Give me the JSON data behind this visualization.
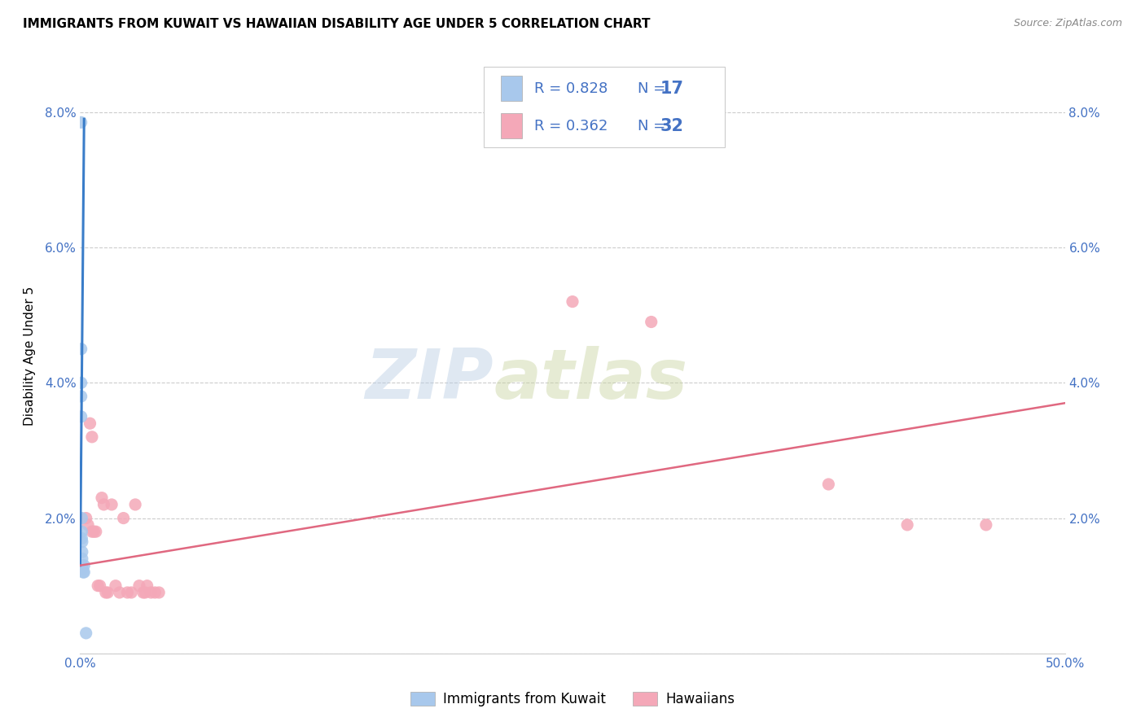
{
  "title": "IMMIGRANTS FROM KUWAIT VS HAWAIIAN DISABILITY AGE UNDER 5 CORRELATION CHART",
  "source": "Source: ZipAtlas.com",
  "ylabel": "Disability Age Under 5",
  "xlim": [
    0.0,
    0.5
  ],
  "ylim": [
    0.0,
    0.088
  ],
  "xticks": [
    0.0,
    0.1,
    0.2,
    0.3,
    0.4,
    0.5
  ],
  "yticks": [
    0.0,
    0.02,
    0.04,
    0.06,
    0.08
  ],
  "ytick_labels": [
    "",
    "2.0%",
    "4.0%",
    "6.0%",
    "8.0%"
  ],
  "xtick_labels": [
    "0.0%",
    "",
    "",
    "",
    "",
    "50.0%"
  ],
  "blue_scatter_x": [
    0.0005,
    0.0005,
    0.0005,
    0.0005,
    0.0005,
    0.0008,
    0.0008,
    0.0008,
    0.001,
    0.001,
    0.001,
    0.001,
    0.001,
    0.0015,
    0.002,
    0.002,
    0.003
  ],
  "blue_scatter_y": [
    0.0785,
    0.045,
    0.04,
    0.038,
    0.035,
    0.02,
    0.018,
    0.017,
    0.0165,
    0.015,
    0.014,
    0.013,
    0.0125,
    0.012,
    0.013,
    0.012,
    0.003
  ],
  "pink_scatter_x": [
    0.003,
    0.004,
    0.005,
    0.006,
    0.006,
    0.007,
    0.008,
    0.009,
    0.01,
    0.011,
    0.012,
    0.013,
    0.014,
    0.016,
    0.018,
    0.02,
    0.022,
    0.024,
    0.026,
    0.028,
    0.03,
    0.032,
    0.033,
    0.034,
    0.036,
    0.038,
    0.04,
    0.25,
    0.29,
    0.38,
    0.42,
    0.46
  ],
  "pink_scatter_y": [
    0.02,
    0.019,
    0.034,
    0.032,
    0.018,
    0.018,
    0.018,
    0.01,
    0.01,
    0.023,
    0.022,
    0.009,
    0.009,
    0.022,
    0.01,
    0.009,
    0.02,
    0.009,
    0.009,
    0.022,
    0.01,
    0.009,
    0.009,
    0.01,
    0.009,
    0.009,
    0.009,
    0.052,
    0.049,
    0.025,
    0.019,
    0.019
  ],
  "blue_line_x": [
    0.0,
    0.002
  ],
  "blue_line_y": [
    0.013,
    0.079
  ],
  "pink_line_x": [
    0.0,
    0.5
  ],
  "pink_line_y": [
    0.013,
    0.037
  ],
  "blue_color": "#A8C8EC",
  "blue_line_color": "#3A7DC9",
  "pink_color": "#F4A8B8",
  "pink_line_color": "#E06880",
  "legend1": "Immigrants from Kuwait",
  "legend2": "Hawaiians",
  "legend_color": "#4472C4",
  "watermark_zip": "ZIP",
  "watermark_atlas": "atlas",
  "grid_color": "#CCCCCC",
  "title_fontsize": 11,
  "axis_tick_color": "#4472C4",
  "scatter_size": 120,
  "background_color": "#FFFFFF"
}
